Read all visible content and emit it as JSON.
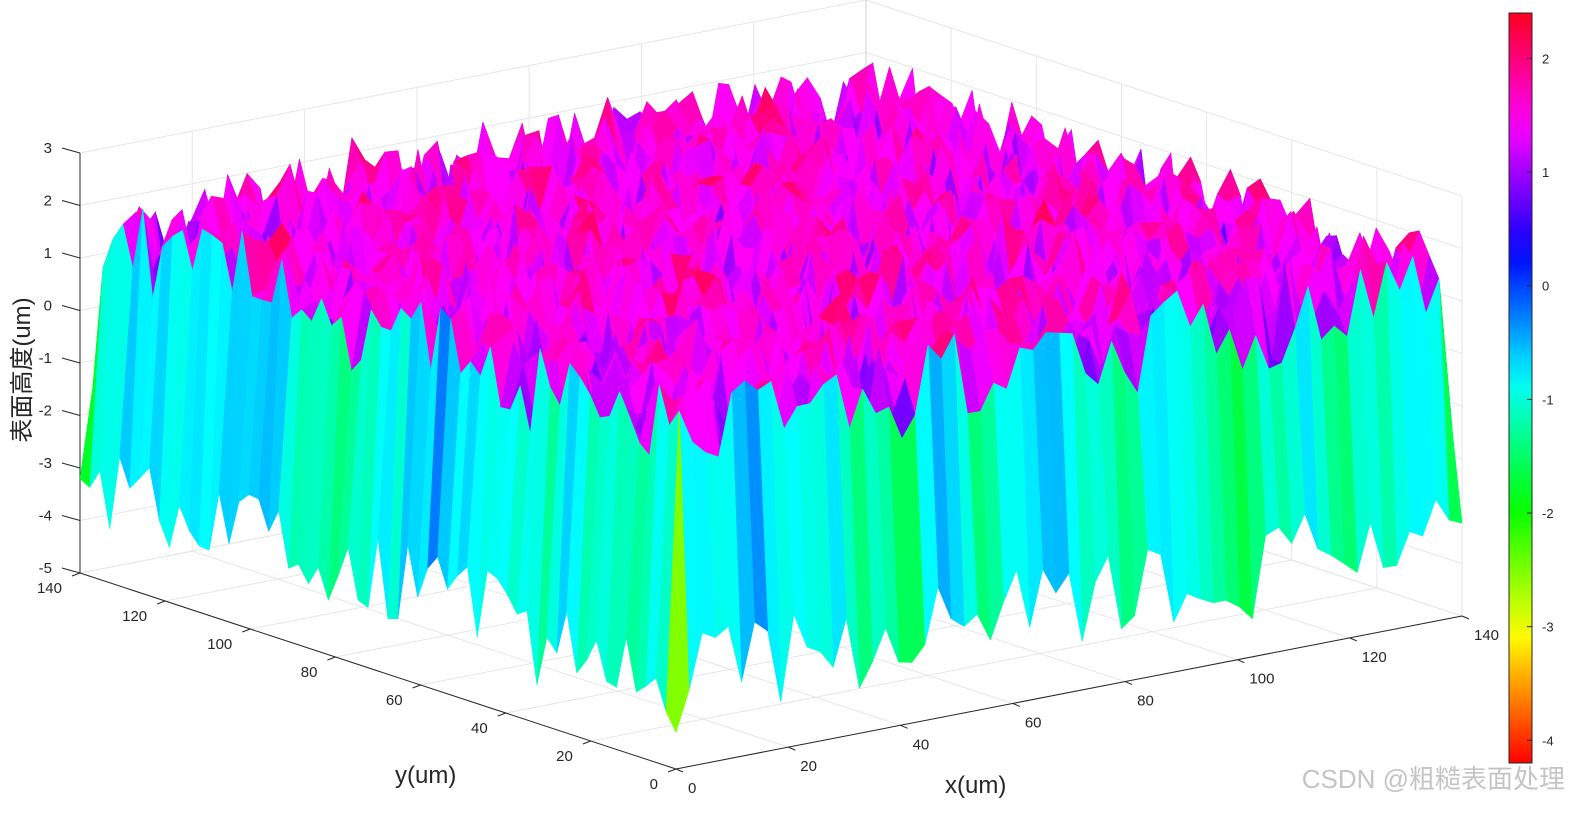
{
  "chart_data": {
    "type": "surface",
    "colormap": "hsv",
    "x_label": "x(um)",
    "y_label": "y(um)",
    "z_label": "表面高度(um)",
    "x_ticks": [
      "0",
      "20",
      "40",
      "60",
      "80",
      "100",
      "120",
      "140"
    ],
    "y_ticks": [
      "0",
      "20",
      "40",
      "60",
      "80",
      "100",
      "120",
      "140"
    ],
    "z_ticks": [
      "-5",
      "-4",
      "-3",
      "-2",
      "-1",
      "0",
      "1",
      "2",
      "3"
    ],
    "xlim": [
      0,
      140
    ],
    "ylim": [
      0,
      140
    ],
    "zlim": [
      -5,
      3
    ],
    "colorbar_range": [
      -4.2,
      2.4
    ],
    "colorbar_ticks": [
      "-4",
      "-3",
      "-2",
      "-1",
      "0",
      "1",
      "2"
    ],
    "grid": true,
    "colorbar": "right",
    "surface_summary": {
      "interior_height_range": [
        0.3,
        2.2
      ],
      "edge_min": -4.3,
      "edge_max": 2.4
    }
  },
  "watermark": "CSDN @粗糙表面处理"
}
